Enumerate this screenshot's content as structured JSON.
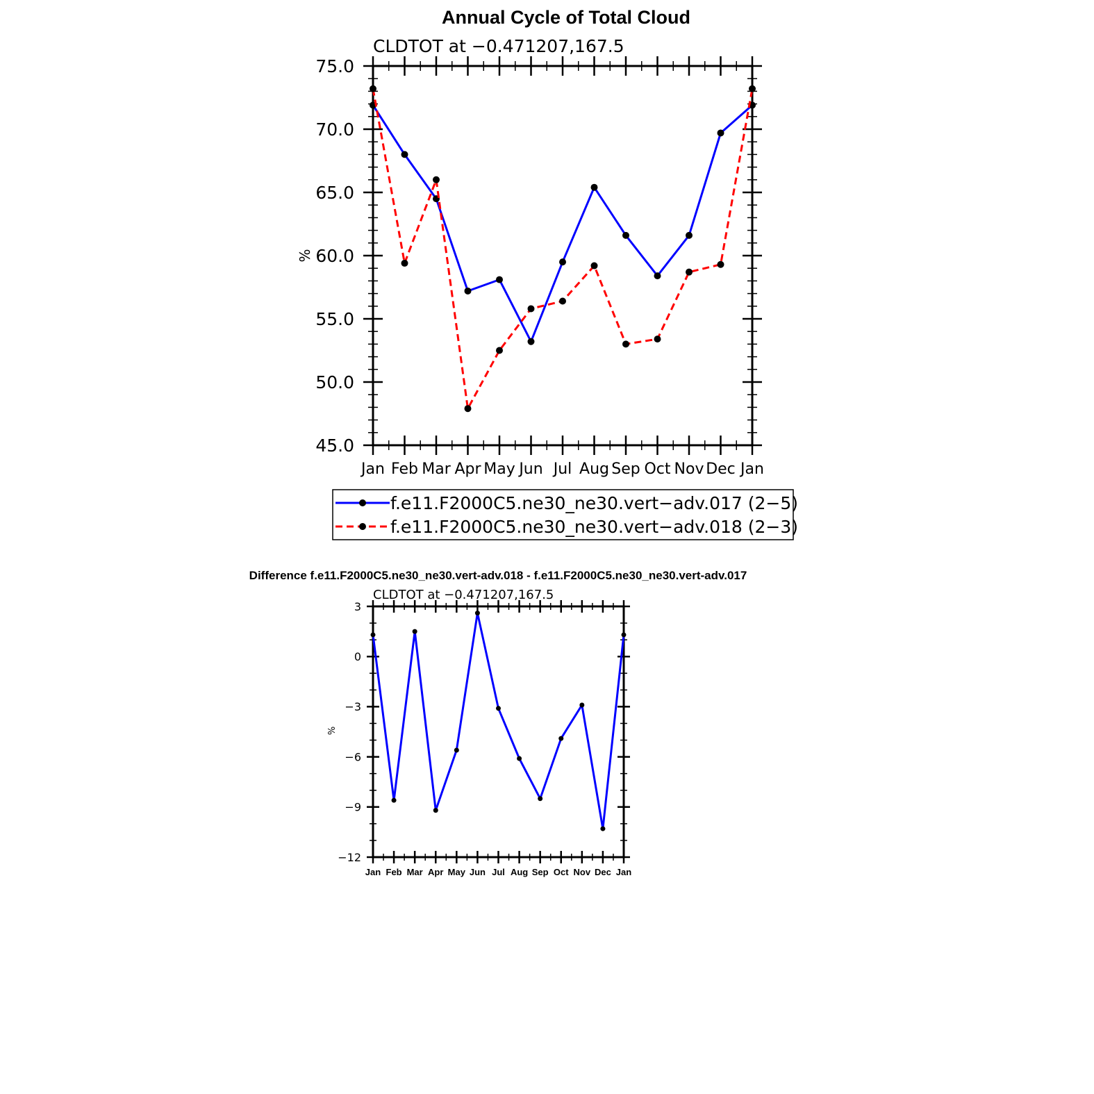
{
  "chart_data": [
    {
      "type": "line",
      "title": "Annual Cycle of Total Cloud",
      "subtitle": "CLDTOT at −0.471207,167.5",
      "xlabel": "",
      "ylabel": "%",
      "categories": [
        "Jan",
        "Feb",
        "Mar",
        "Apr",
        "May",
        "Jun",
        "Jul",
        "Aug",
        "Sep",
        "Oct",
        "Nov",
        "Dec",
        "Jan"
      ],
      "ylim": [
        45,
        75
      ],
      "yticks": [
        "45.0",
        "50.0",
        "55.0",
        "60.0",
        "65.0",
        "70.0",
        "75.0"
      ],
      "yminor_step": 1,
      "grid": false,
      "legend_position": "bottom",
      "series": [
        {
          "name": "f.e11.F2000C5.ne30_ne30.vert−adv.017 (2−5)",
          "color": "#0000ff",
          "dash": "solid",
          "values": [
            71.9,
            68.0,
            64.5,
            57.2,
            58.1,
            53.2,
            59.5,
            65.4,
            61.6,
            58.4,
            61.6,
            69.7,
            71.9
          ]
        },
        {
          "name": "f.e11.F2000C5.ne30_ne30.vert−adv.018 (2−3)",
          "color": "#ff0000",
          "dash": "dashed",
          "values": [
            73.2,
            59.4,
            66.0,
            47.9,
            52.5,
            55.8,
            56.4,
            59.2,
            53.0,
            53.4,
            58.7,
            59.3,
            73.2
          ]
        }
      ]
    },
    {
      "type": "line",
      "title": "Difference f.e11.F2000C5.ne30_ne30.vert-adv.018 - f.e11.F2000C5.ne30_ne30.vert-adv.017",
      "subtitle": "CLDTOT at −0.471207,167.5",
      "xlabel": "",
      "ylabel": "%",
      "categories": [
        "Jan",
        "Feb",
        "Mar",
        "Apr",
        "May",
        "Jun",
        "Jul",
        "Aug",
        "Sep",
        "Oct",
        "Nov",
        "Dec",
        "Jan"
      ],
      "ylim": [
        -12,
        3
      ],
      "yticks": [
        "−12",
        "−9",
        "−6",
        "−3",
        "0",
        "3"
      ],
      "yminor_step": 1,
      "grid": false,
      "series": [
        {
          "name": "difference",
          "color": "#0000ff",
          "dash": "solid",
          "values": [
            1.3,
            -8.6,
            1.5,
            -9.2,
            -5.6,
            2.6,
            -3.1,
            -6.1,
            -8.5,
            -4.9,
            -2.9,
            -10.3,
            1.3
          ]
        }
      ]
    }
  ]
}
